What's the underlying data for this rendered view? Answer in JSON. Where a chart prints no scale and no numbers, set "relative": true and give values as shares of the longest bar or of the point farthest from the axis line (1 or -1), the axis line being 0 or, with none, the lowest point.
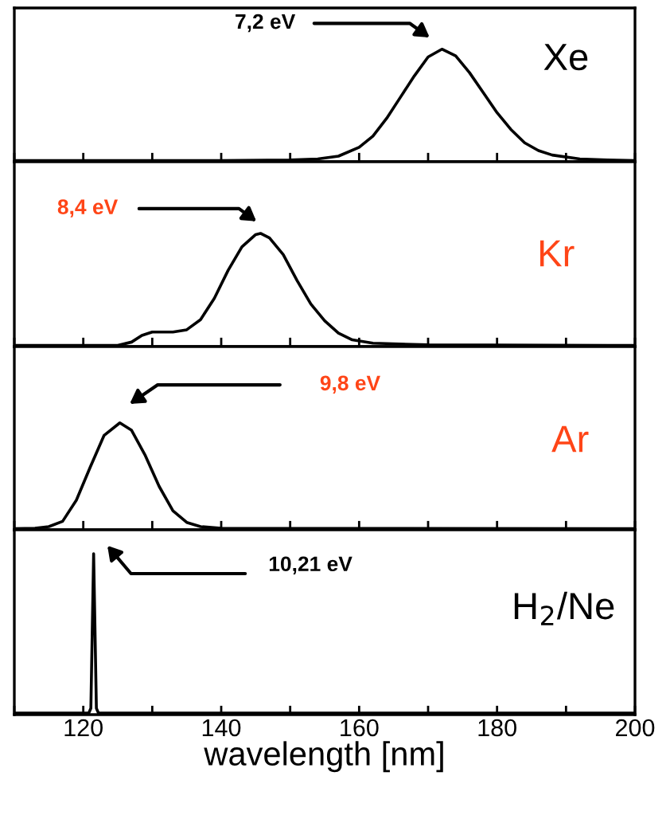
{
  "chart_data": [
    {
      "type": "line",
      "relative": true,
      "tick_labels": false,
      "grid": false,
      "legend": false,
      "xlim": [
        110,
        200
      ],
      "xticks": [
        {
          "value": 110,
          "label": null
        },
        120,
        {
          "value": 130,
          "label": null
        },
        140,
        {
          "value": 150,
          "label": null
        },
        160,
        {
          "value": 170,
          "label": null
        },
        180,
        {
          "value": 190,
          "label": null
        },
        200
      ],
      "annotations": [
        "7,2 eV",
        "Xe"
      ],
      "series": [
        {
          "color": "#000000",
          "x": [
            110,
            140,
            150,
            154,
            157,
            160,
            162,
            164,
            166,
            168,
            170,
            172,
            174,
            176,
            178,
            180,
            182,
            184,
            186,
            188,
            192,
            196,
            200
          ],
          "values": [
            0,
            0,
            0.005,
            0.015,
            0.04,
            0.12,
            0.22,
            0.38,
            0.57,
            0.76,
            0.93,
            1.0,
            0.94,
            0.79,
            0.61,
            0.43,
            0.28,
            0.16,
            0.09,
            0.05,
            0.015,
            0.005,
            0
          ]
        }
      ]
    },
    {
      "type": "line",
      "relative": true,
      "tick_labels": false,
      "grid": false,
      "legend": false,
      "xlim": [
        110,
        200
      ],
      "xticks": [
        {
          "value": 110,
          "label": null
        },
        120,
        {
          "value": 130,
          "label": null
        },
        140,
        {
          "value": 150,
          "label": null
        },
        160,
        {
          "value": 170,
          "label": null
        },
        180,
        {
          "value": 190,
          "label": null
        },
        200
      ],
      "annotations": [
        "8,4 eV",
        "Kr"
      ],
      "series": [
        {
          "color": "#000000",
          "x": [
            110,
            125,
            127,
            128.5,
            130,
            133,
            135,
            137,
            139,
            141,
            143,
            145,
            145.7,
            147,
            149,
            151,
            153,
            155,
            157,
            159,
            162,
            170,
            200
          ],
          "values": [
            0,
            0,
            0.03,
            0.09,
            0.12,
            0.12,
            0.14,
            0.23,
            0.42,
            0.67,
            0.88,
            0.99,
            1.0,
            0.96,
            0.81,
            0.58,
            0.37,
            0.22,
            0.11,
            0.05,
            0.02,
            0.005,
            0
          ]
        }
      ]
    },
    {
      "type": "line",
      "relative": true,
      "tick_labels": false,
      "grid": false,
      "legend": false,
      "xlim": [
        110,
        200
      ],
      "xticks": [
        {
          "value": 110,
          "label": null
        },
        120,
        {
          "value": 130,
          "label": null
        },
        140,
        {
          "value": 150,
          "label": null
        },
        160,
        {
          "value": 170,
          "label": null
        },
        180,
        {
          "value": 190,
          "label": null
        },
        200
      ],
      "annotations": [
        "9,8 eV",
        "Ar"
      ],
      "series": [
        {
          "color": "#000000",
          "x": [
            110,
            113,
            115,
            117,
            119,
            121,
            123,
            125.3,
            127,
            129,
            131,
            133,
            135,
            137,
            140,
            200
          ],
          "values": [
            0,
            0.005,
            0.02,
            0.07,
            0.27,
            0.58,
            0.88,
            1.0,
            0.93,
            0.69,
            0.4,
            0.17,
            0.06,
            0.02,
            0.005,
            0
          ]
        }
      ]
    },
    {
      "type": "line",
      "relative": true,
      "tick_labels": "x",
      "grid": false,
      "legend": false,
      "xlim": [
        110,
        200
      ],
      "xlabel": "wavelength [nm]",
      "xticks": [
        {
          "value": 110,
          "label": null
        },
        120,
        {
          "value": 130,
          "label": null
        },
        140,
        {
          "value": 150,
          "label": null
        },
        160,
        {
          "value": 170,
          "label": null
        },
        180,
        {
          "value": 190,
          "label": null
        },
        200
      ],
      "annotations": [
        "10,21 eV",
        "H$_{2}$/Ne"
      ],
      "series": [
        {
          "color": "#000000",
          "x": [
            110,
            120.8,
            121.1,
            121.5,
            121.9,
            122.2,
            200
          ],
          "values": [
            0,
            0,
            0.03,
            1.0,
            0.03,
            0,
            0
          ]
        }
      ]
    }
  ]
}
